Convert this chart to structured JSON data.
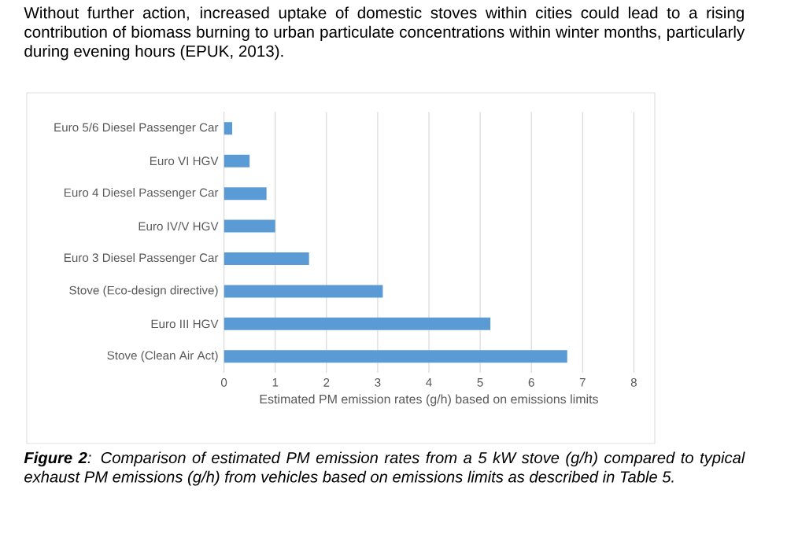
{
  "chart_data": {
    "type": "bar",
    "orientation": "horizontal",
    "categories": [
      "Euro 5/6 Diesel Passenger Car",
      "Euro VI HGV",
      "Euro 4 Diesel Passenger Car",
      "Euro IV/V HGV",
      "Euro 3 Diesel Passenger Car",
      "Stove (Eco-design directive)",
      "Euro III HGV",
      "Stove (Clean Air Act)"
    ],
    "values": [
      0.16,
      0.5,
      0.83,
      1.0,
      1.66,
      3.1,
      5.2,
      6.7
    ],
    "color": "#5b9bd5",
    "xlabel": "Estimated PM emission rates (g/h) based on emissions limits",
    "xlim": [
      0,
      8
    ],
    "xticks": [
      0,
      1,
      2,
      3,
      4,
      5,
      6,
      7,
      8
    ],
    "grid": "x",
    "annotations": [
      "Without further action, increased uptake of domestic stoves within cities could lead to a rising contribution of biomass burning to urban particulate concentrations within winter months, particularly during evening hours (EPUK, 2013).",
      "**Figure 2**: Comparison of estimated PM emission rates from a 5 kW stove (g/h) compared to typical exhaust PM emissions (g/h) from vehicles based on emissions limits as described in Table 5."
    ]
  }
}
